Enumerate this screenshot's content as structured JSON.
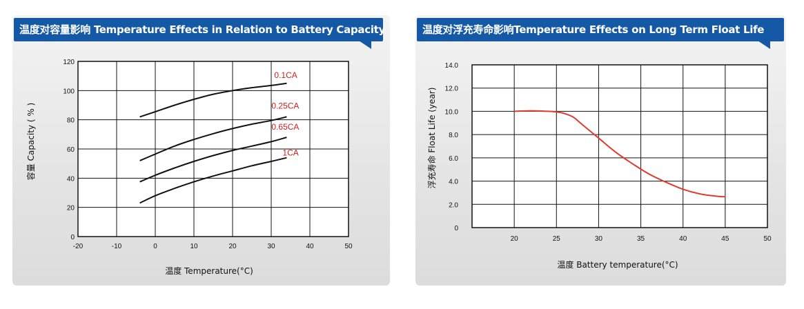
{
  "chart_data": [
    {
      "type": "line",
      "title": "温度对容量影响 Temperature Effects in Relation to Battery Capacity",
      "xlabel": "温度 Temperature(°C)",
      "ylabel": "容量 Capacity ( % )",
      "xlim": [
        -20,
        50
      ],
      "ylim": [
        0,
        120
      ],
      "xticks": [
        "-20",
        "-10",
        "0",
        "10",
        "20",
        "30",
        "40",
        "50"
      ],
      "yticks": [
        "0",
        "20",
        "40",
        "60",
        "80",
        "100",
        "120"
      ],
      "grid": true,
      "series": [
        {
          "name": "0.1CA",
          "x": [
            -4,
            0,
            5,
            10,
            15,
            20,
            25,
            30,
            34
          ],
          "y": [
            82,
            85.5,
            90,
            94,
            97.5,
            100,
            102,
            103.5,
            105
          ]
        },
        {
          "name": "0.25CA",
          "x": [
            -4,
            0,
            5,
            10,
            15,
            20,
            25,
            30,
            34
          ],
          "y": [
            52,
            56.5,
            62,
            66.5,
            70.5,
            74,
            77,
            79.5,
            82
          ]
        },
        {
          "name": "0.65CA",
          "x": [
            -4,
            0,
            5,
            10,
            15,
            20,
            25,
            30,
            34
          ],
          "y": [
            37.5,
            42,
            47,
            51.5,
            55.5,
            59,
            62,
            65,
            68
          ]
        },
        {
          "name": "1CA",
          "x": [
            -4,
            0,
            5,
            10,
            15,
            20,
            25,
            30,
            34
          ],
          "y": [
            23,
            28,
            33,
            37.5,
            41.5,
            45,
            48.5,
            51.5,
            54
          ]
        }
      ],
      "line_color": "#111111",
      "label_color": "#d21e1e"
    },
    {
      "type": "line",
      "title": "温度对浮充寿命影响Temperature Effects on Long Term Float Life",
      "xlabel": "温度 Battery temperature(°C)",
      "ylabel": "浮充寿命 Float Life (year)",
      "xlim": [
        15,
        50
      ],
      "ylim": [
        0,
        14
      ],
      "xticks": [
        "20",
        "25",
        "30",
        "35",
        "40",
        "45",
        "50"
      ],
      "yticks": [
        "0",
        "2.0",
        "4.0",
        "6.0",
        "8.0",
        "10.0",
        "12.0",
        "14.0"
      ],
      "grid": true,
      "series": [
        {
          "x": [
            20,
            22,
            24,
            25,
            26,
            27,
            28,
            30,
            32,
            34,
            36,
            38,
            40,
            42,
            44,
            45
          ],
          "y": [
            10,
            10.05,
            10,
            9.95,
            9.8,
            9.5,
            8.9,
            7.7,
            6.5,
            5.5,
            4.6,
            3.9,
            3.3,
            2.9,
            2.7,
            2.65
          ]
        }
      ],
      "line_color": "#e03a2e"
    }
  ]
}
